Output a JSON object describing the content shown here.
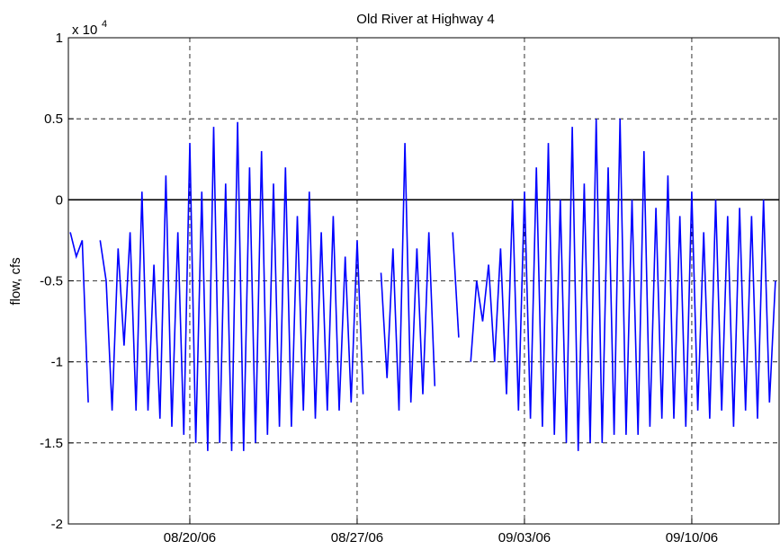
{
  "chart_data": {
    "type": "line",
    "title": "Old River at Highway 4",
    "y_label": "flow, cfs",
    "y_multiplier": {
      "base": "x 10",
      "exponent": "4"
    },
    "x": [
      227,
      227.25,
      227.5,
      227.75,
      228,
      228.25,
      228.5,
      228.75,
      229,
      229.25,
      229.5,
      229.75,
      230,
      230.25,
      230.5,
      230.75,
      231,
      231.25,
      231.5,
      231.75,
      232,
      232.25,
      232.5,
      232.75,
      233,
      233.25,
      233.5,
      233.75,
      234,
      234.25,
      234.5,
      234.75,
      235,
      235.25,
      235.5,
      235.75,
      236,
      236.25,
      236.5,
      236.75,
      237,
      237.25,
      237.5,
      237.75,
      238,
      238.25,
      238.5,
      238.75,
      239,
      239.25,
      239.5,
      239.75,
      240,
      240.25,
      240.5,
      240.75,
      241,
      241.25,
      241.5,
      241.75,
      242,
      242.25,
      242.5,
      242.75,
      243,
      243.25,
      243.5,
      243.75,
      244,
      244.25,
      244.5,
      244.75,
      245,
      245.25,
      245.5,
      245.75,
      246,
      246.25,
      246.5,
      246.75,
      247,
      247.25,
      247.5,
      247.75,
      248,
      248.25,
      248.5,
      248.75,
      249,
      249.25,
      249.5,
      249.75,
      250,
      250.25,
      250.5,
      250.75,
      251,
      251.25,
      251.5,
      251.75,
      252,
      252.25,
      252.5,
      252.75,
      253,
      253.25,
      253.5,
      253.75,
      254,
      254.25,
      254.5,
      254.75,
      255,
      255.25,
      255.5,
      255.75,
      256,
      256.25,
      256.5
    ],
    "series": [
      {
        "name": "flow",
        "color": "#0000ff",
        "values": [
          -0.2,
          -0.35,
          -0.25,
          -1.25,
          null,
          -0.25,
          -0.5,
          -1.3,
          -0.3,
          -0.9,
          -0.2,
          -1.3,
          0.05,
          -1.3,
          -0.4,
          -1.35,
          0.15,
          -1.4,
          -0.2,
          -1.45,
          0.35,
          -1.5,
          0.05,
          -1.55,
          0.45,
          -1.5,
          0.1,
          -1.55,
          0.48,
          -1.55,
          0.2,
          -1.5,
          0.3,
          -1.45,
          0.1,
          -1.4,
          0.2,
          -1.4,
          -0.1,
          -1.3,
          0.05,
          -1.35,
          -0.2,
          -1.3,
          -0.1,
          -1.3,
          -0.35,
          -1.25,
          -0.25,
          -1.2,
          null,
          null,
          -0.45,
          -1.1,
          -0.3,
          -1.3,
          0.35,
          -1.25,
          -0.3,
          -1.2,
          -0.2,
          -1.15,
          null,
          null,
          -0.2,
          -0.85,
          null,
          -1.0,
          -0.5,
          -0.75,
          -0.4,
          -1.0,
          -0.3,
          -1.2,
          0.0,
          -1.3,
          0.05,
          -1.35,
          0.2,
          -1.4,
          0.35,
          -1.45,
          0.0,
          -1.5,
          0.45,
          -1.55,
          0.1,
          -1.5,
          0.5,
          -1.5,
          0.2,
          -1.45,
          0.5,
          -1.45,
          0.0,
          -1.45,
          0.3,
          -1.4,
          -0.05,
          -1.35,
          0.15,
          -1.35,
          -0.1,
          -1.4,
          0.05,
          -1.3,
          -0.2,
          -1.35,
          0.0,
          -1.3,
          -0.1,
          -1.4,
          -0.05,
          -1.3,
          -0.1,
          -1.35,
          0.0,
          -1.25,
          -0.5
        ]
      }
    ],
    "xlim": [
      226.92,
      256.7
    ],
    "xticks": [
      {
        "value": 232,
        "label": "08/20/06"
      },
      {
        "value": 239,
        "label": "08/27/06"
      },
      {
        "value": 246,
        "label": "09/03/06"
      },
      {
        "value": 253,
        "label": "09/10/06"
      }
    ],
    "ylim": [
      -2,
      1
    ],
    "yticks": [
      -2,
      -1.5,
      -1,
      -0.5,
      0,
      0.5,
      1
    ],
    "grid": true,
    "zero_line": true
  }
}
